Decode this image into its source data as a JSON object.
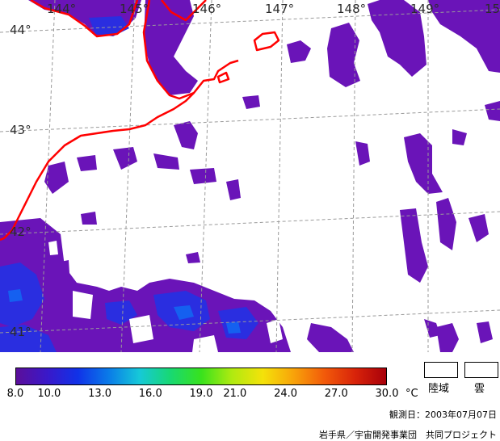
{
  "map": {
    "latitude_labels": [
      "44°",
      "43°",
      "42°",
      "41°"
    ],
    "longitude_labels": [
      "144°",
      "145°",
      "146°",
      "147°",
      "148°",
      "149°",
      "15"
    ],
    "coastline_color": "#ff0000",
    "grid_color": "#9a9a9a"
  },
  "colorbar": {
    "min": 8.0,
    "max": 30.0,
    "tick_labels": [
      "8.0",
      "10.0",
      "13.0",
      "16.0",
      "19.0",
      "21.0",
      "24.0",
      "27.0",
      "30.0"
    ],
    "unit": "°C",
    "colors": [
      "#5b0f9a",
      "#3a18c9",
      "#1032e8",
      "#0a7be8",
      "#16c9d8",
      "#18d873",
      "#38e21d",
      "#b0ea10",
      "#f4e20a",
      "#f8a30a",
      "#f25a0a",
      "#d8230a",
      "#a8000a"
    ]
  },
  "legend": {
    "land_label": "陸域",
    "cloud_label": "雲"
  },
  "footer": {
    "observation_date": "観測日：2003年07月07日",
    "credit": "岩手県／宇宙開発事業団　共同プロジェクト"
  }
}
